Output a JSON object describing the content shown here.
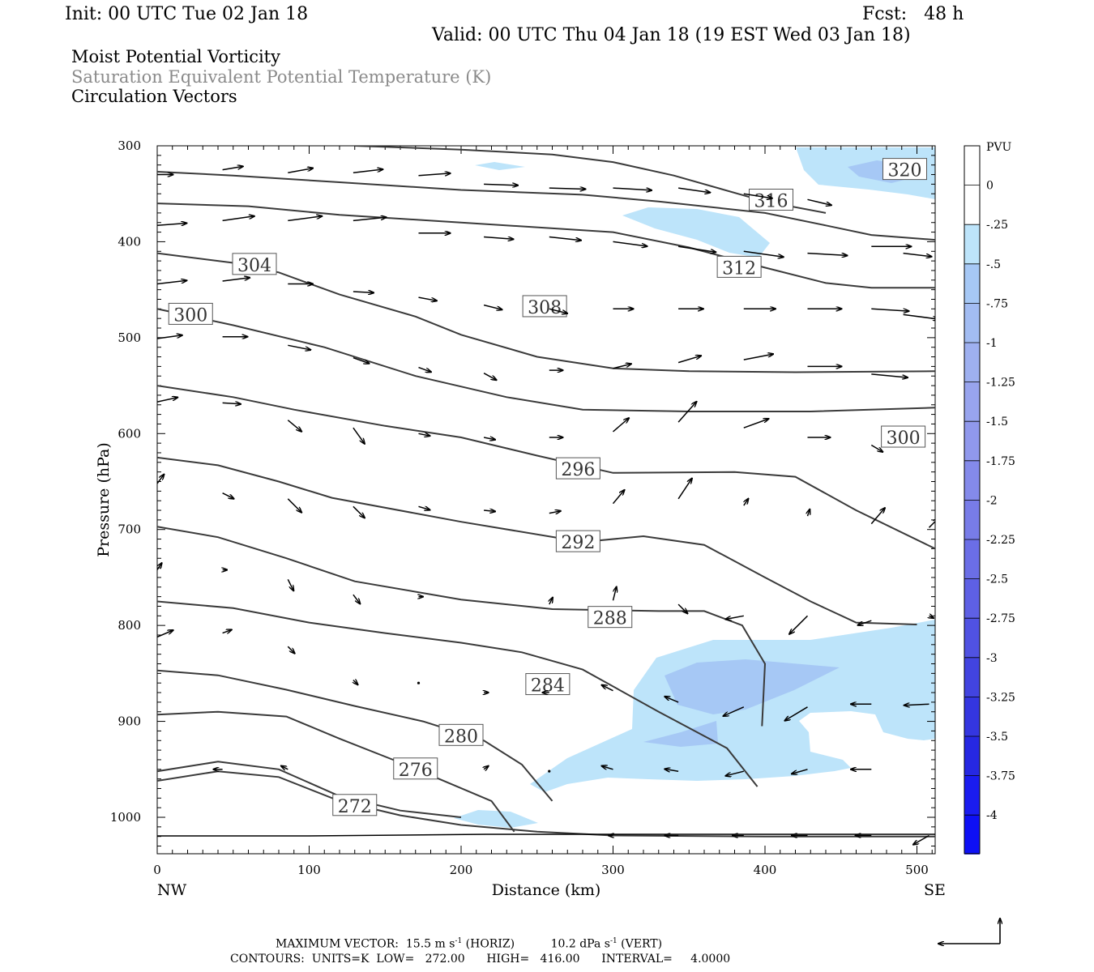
{
  "header": {
    "init": "Init: 00 UTC Tue 02 Jan 18",
    "fcst": "Fcst:   48 h",
    "valid": "Valid: 00 UTC Thu 04 Jan 18 (19 EST Wed 03 Jan 18)",
    "line1": "Moist Potential Vorticity",
    "line2": "Saturation Equivalent Potential Temperature (K)",
    "line3": "Circulation Vectors"
  },
  "footer": {
    "max_vector_prefix": "MAXIMUM VECTOR:  15.5 m s",
    "max_vector_horiz": " (HORIZ)",
    "max_vector_vert_val": "10.2 dPa s",
    "max_vector_vert": " (VERT)",
    "exp": "-1",
    "contours": "CONTOURS:  UNITS=K  LOW=   272.00      HIGH=   416.00      INTERVAL=     4.0000"
  },
  "colors": {
    "contour": "#3a3a3a",
    "pv_025": "#bde4fa",
    "pv_05": "#a6c8f5",
    "pv_075": "#a2bcf2"
  },
  "chart_data": {
    "type": "cross-section",
    "xlabel": "Distance (km)",
    "ylabel": "Pressure (hPa)",
    "xlim": [
      0,
      512
    ],
    "ylim": [
      1038,
      300
    ],
    "x_ticks": [
      0,
      100,
      200,
      300,
      400,
      500
    ],
    "y_ticks": [
      300,
      400,
      500,
      600,
      700,
      800,
      900,
      1000
    ],
    "x_end_labels": [
      "NW",
      "SE"
    ],
    "colorbar": {
      "title": "PVU",
      "levels": [
        "0",
        "-.25",
        "-.5",
        "-.75",
        "-1",
        "-1.25",
        "-1.5",
        "-1.75",
        "-2",
        "-2.25",
        "-2.5",
        "-2.75",
        "-3",
        "-3.25",
        "-3.5",
        "-3.75",
        "-4"
      ],
      "colors": [
        "#ffffff",
        "#ffffff",
        "#bde4fa",
        "#a6c8f5",
        "#a2bcf2",
        "#9eb0f0",
        "#98a4ee",
        "#9098ec",
        "#848aea",
        "#787ce8",
        "#6b6ee6",
        "#5e60e4",
        "#5052e2",
        "#4244e0",
        "#3436e0",
        "#2628e2",
        "#1a1cf0",
        "#0e10f5"
      ]
    },
    "theta_e_contours": [
      {
        "level": 272,
        "label": "272",
        "points": [
          [
            0,
            962
          ],
          [
            40,
            952
          ],
          [
            80,
            958
          ],
          [
            120,
            983
          ],
          [
            160,
            998
          ],
          [
            200,
            1008
          ],
          [
            250,
            1015
          ],
          [
            300,
            1019
          ],
          [
            400,
            1020
          ],
          [
            512,
            1020
          ]
        ]
      },
      {
        "level": 276,
        "label": "276",
        "points": [
          [
            0,
            952
          ],
          [
            40,
            942
          ],
          [
            80,
            950
          ],
          [
            120,
            978
          ],
          [
            160,
            993
          ],
          [
            200,
            1000
          ]
        ]
      },
      {
        "level": 280,
        "label": "280",
        "points": [
          [
            0,
            893
          ],
          [
            40,
            890
          ],
          [
            85,
            895
          ],
          [
            120,
            918
          ],
          [
            160,
            943
          ],
          [
            190,
            963
          ],
          [
            220,
            983
          ],
          [
            235,
            1015
          ]
        ]
      },
      {
        "level": 284,
        "label": "284",
        "points": [
          [
            0,
            847
          ],
          [
            40,
            852
          ],
          [
            85,
            867
          ],
          [
            130,
            884
          ],
          [
            175,
            900
          ],
          [
            215,
            920
          ],
          [
            240,
            945
          ],
          [
            260,
            983
          ]
        ]
      },
      {
        "level": 288,
        "label": "288",
        "points": [
          [
            0,
            775
          ],
          [
            50,
            782
          ],
          [
            100,
            797
          ],
          [
            150,
            808
          ],
          [
            200,
            818
          ],
          [
            240,
            828
          ],
          [
            280,
            846
          ],
          [
            330,
            890
          ],
          [
            375,
            928
          ],
          [
            395,
            968
          ]
        ]
      },
      {
        "level": 292,
        "label": "292",
        "points": [
          [
            0,
            697
          ],
          [
            40,
            708
          ],
          [
            85,
            730
          ],
          [
            130,
            754
          ],
          [
            200,
            773
          ],
          [
            260,
            783
          ],
          [
            330,
            785
          ],
          [
            360,
            785
          ],
          [
            385,
            800
          ],
          [
            400,
            840
          ],
          [
            398,
            905
          ]
        ]
      },
      {
        "level": 296,
        "label": "296",
        "points": [
          [
            0,
            625
          ],
          [
            40,
            633
          ],
          [
            80,
            650
          ],
          [
            115,
            667
          ],
          [
            200,
            692
          ],
          [
            280,
            713
          ],
          [
            320,
            707
          ],
          [
            360,
            716
          ],
          [
            400,
            750
          ],
          [
            430,
            775
          ],
          [
            460,
            797
          ],
          [
            500,
            799
          ]
        ]
      },
      {
        "level": 300,
        "label": "300",
        "points": [
          [
            0,
            550
          ],
          [
            50,
            562
          ],
          [
            90,
            575
          ],
          [
            150,
            592
          ],
          [
            200,
            604
          ],
          [
            250,
            623
          ],
          [
            300,
            641
          ],
          [
            380,
            640
          ],
          [
            420,
            645
          ],
          [
            460,
            680
          ],
          [
            512,
            720
          ]
        ]
      },
      {
        "level": 304,
        "label": "304",
        "points": [
          [
            0,
            470
          ],
          [
            50,
            487
          ],
          [
            110,
            510
          ],
          [
            170,
            540
          ],
          [
            230,
            562
          ],
          [
            280,
            575
          ],
          [
            350,
            577
          ],
          [
            430,
            577
          ],
          [
            512,
            573
          ]
        ]
      },
      {
        "level": 308,
        "label": "308",
        "points": [
          [
            0,
            412
          ],
          [
            50,
            422
          ],
          [
            80,
            432
          ],
          [
            120,
            455
          ],
          [
            170,
            478
          ],
          [
            200,
            497
          ],
          [
            250,
            520
          ],
          [
            300,
            532
          ],
          [
            350,
            535
          ],
          [
            420,
            536
          ],
          [
            512,
            535
          ]
        ]
      },
      {
        "level": 312,
        "label": "312",
        "points": [
          [
            0,
            360
          ],
          [
            60,
            363
          ],
          [
            120,
            372
          ],
          [
            200,
            380
          ],
          [
            300,
            390
          ],
          [
            350,
            406
          ],
          [
            400,
            427
          ],
          [
            440,
            443
          ],
          [
            470,
            448
          ],
          [
            512,
            448
          ]
        ]
      },
      {
        "level": 316,
        "label": "316",
        "points": [
          [
            0,
            327
          ],
          [
            50,
            331
          ],
          [
            120,
            338
          ],
          [
            200,
            346
          ],
          [
            280,
            351
          ],
          [
            330,
            358
          ],
          [
            400,
            370
          ],
          [
            440,
            383
          ],
          [
            470,
            393
          ],
          [
            512,
            398
          ]
        ]
      },
      {
        "level": 320,
        "label": "320",
        "points": [
          [
            130,
            300
          ],
          [
            200,
            304
          ],
          [
            260,
            309
          ],
          [
            300,
            317
          ],
          [
            340,
            331
          ],
          [
            400,
            358
          ],
          [
            440,
            370
          ]
        ]
      }
    ]
  }
}
